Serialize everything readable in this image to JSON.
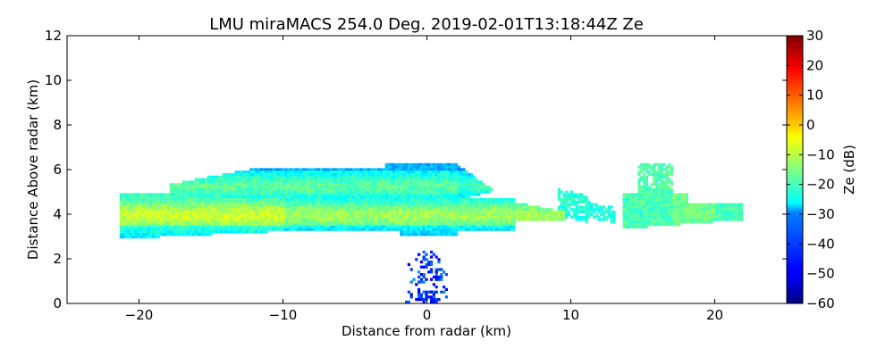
{
  "chart_data": {
    "type": "heatmap",
    "title": "LMU miraMACS 254.0 Deg. 2019-02-01T13:18:44Z  Ze",
    "xlabel": "Distance from radar (km)",
    "ylabel": "Distance Above radar  (km)",
    "xlim": [
      -25,
      25
    ],
    "ylim": [
      0,
      12
    ],
    "xticks": [
      -20,
      -10,
      0,
      10,
      20
    ],
    "xtick_labels": [
      "−20",
      "−10",
      "0",
      "10",
      "20"
    ],
    "yticks": [
      0,
      2,
      4,
      6,
      8,
      10,
      12
    ],
    "ytick_labels": [
      "0",
      "2",
      "4",
      "6",
      "8",
      "10",
      "12"
    ],
    "colorbar": {
      "label": "Ze (dB)",
      "range": [
        -60,
        30
      ],
      "colormap": "jet",
      "ticks": [
        30,
        20,
        10,
        0,
        -10,
        -20,
        -30,
        -40,
        -50,
        -60
      ],
      "tick_labels": [
        "30",
        "20",
        "10",
        "0",
        "−10",
        "−20",
        "−30",
        "−40",
        "−50",
        "−60"
      ]
    },
    "echo_regions": [
      {
        "name": "lower main layer",
        "x_range": [
          -21.5,
          9.5
        ],
        "z_range": [
          3.2,
          4.8
        ],
        "typical_ze_db": -18
      },
      {
        "name": "upper main layer",
        "x_range": [
          -18,
          6
        ],
        "z_range": [
          4.7,
          6.3
        ],
        "typical_ze_db": -22
      },
      {
        "name": "eastern tail",
        "x_range": [
          9,
          13
        ],
        "z_range": [
          3.8,
          5.5
        ],
        "typical_ze_db": -25
      },
      {
        "name": "eastern patch",
        "x_range": [
          13.5,
          21.5
        ],
        "z_range": [
          3.5,
          6.5
        ],
        "typical_ze_db": -18
      },
      {
        "name": "near-radar clutter",
        "x_range": [
          -2.5,
          1.5
        ],
        "z_range": [
          0,
          2.4
        ],
        "typical_ze_db": -42
      }
    ]
  }
}
